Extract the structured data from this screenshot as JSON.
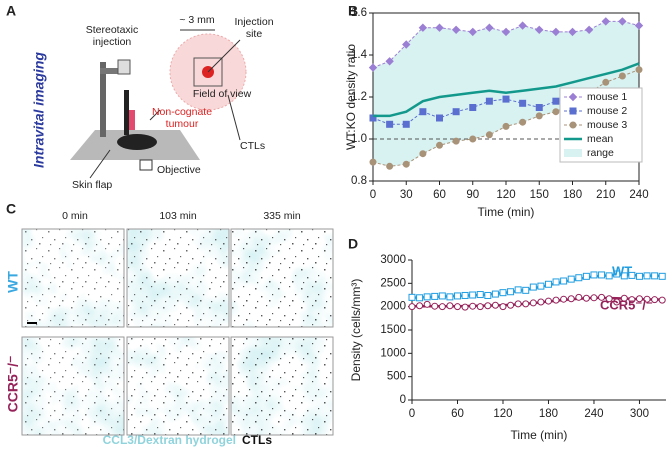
{
  "panel_labels": [
    "A",
    "B",
    "C",
    "D"
  ],
  "diagram": {
    "title": "Intravital imaging",
    "injection": [
      "Stereotaxic",
      "injection"
    ],
    "scale": "~ 3 mm",
    "site": [
      "Injection",
      "site"
    ],
    "fov": "Field of view",
    "tumour": [
      "Non-cognate",
      "tumour"
    ],
    "ctls": "CTLs",
    "skin": "Skin flap",
    "objective": "Objective"
  },
  "micrographs": {
    "columns": [
      "0 min",
      "103 min",
      "335 min"
    ],
    "rows": [
      "WT",
      "CCR5⁻/⁻"
    ],
    "caption": [
      "CCL3/Dextran hydrogel",
      "CTLs"
    ]
  },
  "chart_data": [
    {
      "type": "line",
      "ylabel": "WT:KO density ratio",
      "xlabel": "Time (min)",
      "xlim": [
        0,
        240
      ],
      "ylim": [
        0.8,
        1.6
      ],
      "xticks": [
        0,
        30,
        60,
        90,
        120,
        150,
        180,
        210,
        240
      ],
      "yticks": [
        0.8,
        {
          "value": 1,
          "label": "1.0"
        },
        1.2,
        1.4,
        1.6
      ],
      "hline": 1,
      "legend": "lower right",
      "x": [
        0,
        15,
        30,
        45,
        60,
        75,
        90,
        105,
        120,
        135,
        150,
        165,
        180,
        195,
        210,
        225,
        240
      ],
      "series": [
        {
          "name": "mouse 1",
          "color": "#9b7fd4",
          "marker": "diamond",
          "values": [
            1.34,
            1.37,
            1.45,
            1.53,
            1.53,
            1.52,
            1.51,
            1.53,
            1.51,
            1.54,
            1.52,
            1.51,
            1.51,
            1.52,
            1.56,
            1.56,
            1.54
          ]
        },
        {
          "name": "mouse 2",
          "color": "#5a6fd0",
          "marker": "square",
          "values": [
            1.1,
            1.07,
            1.07,
            1.13,
            1.1,
            1.13,
            1.15,
            1.18,
            1.19,
            1.17,
            1.15,
            1.18,
            1.16,
            1.14,
            1.18,
            1.21,
            1.2
          ]
        },
        {
          "name": "mouse 3",
          "color": "#a89278",
          "marker": "circle",
          "values": [
            0.89,
            0.87,
            0.88,
            0.93,
            0.97,
            0.99,
            1.0,
            1.02,
            1.06,
            1.08,
            1.11,
            1.13,
            1.17,
            1.22,
            1.27,
            1.3,
            1.33
          ]
        },
        {
          "name": "mean",
          "color": "#13998c",
          "values": [
            1.11,
            1.11,
            1.13,
            1.18,
            1.2,
            1.21,
            1.22,
            1.23,
            1.22,
            1.23,
            1.24,
            1.25,
            1.27,
            1.29,
            1.31,
            1.33,
            1.36
          ]
        }
      ],
      "range": {
        "name": "range",
        "color": "#d8f1f1",
        "lower": [
          0.89,
          0.87,
          0.88,
          0.93,
          0.97,
          0.99,
          1.0,
          1.02,
          1.06,
          1.08,
          1.11,
          1.13,
          1.16,
          1.14,
          1.18,
          1.21,
          1.2
        ],
        "upper": [
          1.34,
          1.37,
          1.45,
          1.53,
          1.53,
          1.52,
          1.51,
          1.53,
          1.51,
          1.54,
          1.52,
          1.51,
          1.51,
          1.52,
          1.56,
          1.56,
          1.54
        ]
      }
    },
    {
      "type": "line",
      "ylabel": "Density (cells/mm³)",
      "xlabel": "Time (min)",
      "xlim": [
        0,
        335
      ],
      "ylim": [
        0,
        3000
      ],
      "xticks": [
        0,
        60,
        120,
        180,
        240,
        300
      ],
      "yticks": [
        0,
        500,
        1000,
        1500,
        2000,
        2500,
        3000
      ],
      "legend": "direct",
      "x": [
        0,
        10,
        20,
        30,
        40,
        50,
        60,
        70,
        80,
        90,
        100,
        110,
        120,
        130,
        140,
        150,
        160,
        170,
        180,
        190,
        200,
        210,
        220,
        230,
        240,
        250,
        260,
        270,
        280,
        290,
        300,
        310,
        320,
        330
      ],
      "series": [
        {
          "name": "WT",
          "color": "#1f9de0",
          "marker": "square",
          "values": [
            2200,
            2190,
            2210,
            2220,
            2230,
            2210,
            2230,
            2240,
            2250,
            2260,
            2240,
            2270,
            2300,
            2320,
            2360,
            2350,
            2420,
            2440,
            2480,
            2530,
            2550,
            2590,
            2620,
            2650,
            2680,
            2680,
            2660,
            2700,
            2660,
            2670,
            2650,
            2660,
            2660,
            2650
          ],
          "fit_x": [
            0,
            30,
            60,
            90,
            120,
            150,
            180,
            210,
            240,
            270,
            300,
            330
          ],
          "fit": [
            2190,
            2210,
            2230,
            2250,
            2290,
            2360,
            2460,
            2570,
            2650,
            2680,
            2670,
            2660
          ]
        },
        {
          "name": "CCR5⁻/⁻",
          "color": "#96225a",
          "marker": "circle",
          "values": [
            2000,
            2020,
            2050,
            2010,
            2000,
            2020,
            2000,
            1990,
            2010,
            2000,
            2020,
            2030,
            2000,
            2030,
            2060,
            2060,
            2080,
            2100,
            2120,
            2140,
            2160,
            2170,
            2200,
            2180,
            2190,
            2200,
            2170,
            2100,
            2180,
            2150,
            2170,
            2160,
            2150,
            2140
          ],
          "fit_x": [
            0,
            30,
            60,
            90,
            120,
            150,
            180,
            210,
            240,
            270,
            300,
            330
          ],
          "fit": [
            2010,
            2010,
            2010,
            2020,
            2030,
            2060,
            2110,
            2160,
            2190,
            2180,
            2160,
            2150
          ]
        }
      ]
    }
  ]
}
